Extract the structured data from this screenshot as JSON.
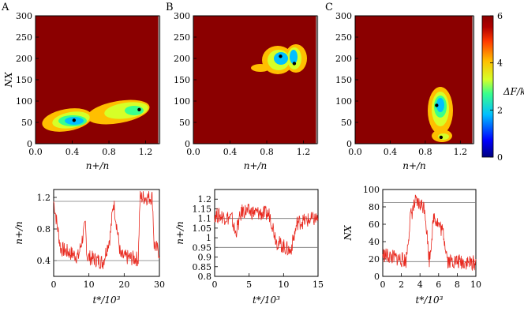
{
  "colors": {
    "background_red": "#8b0000",
    "series_red": "#e8281e",
    "hline": "#777777",
    "colormap": [
      "#00007f",
      "#0000ff",
      "#00bfff",
      "#39ff8c",
      "#d6ff28",
      "#ffbf00",
      "#ff3a00",
      "#b00000",
      "#8b0000"
    ]
  },
  "chart_data": [
    {
      "panel": "A",
      "type": "heatmap",
      "xlabel": "n+/n",
      "ylabel": "NX",
      "xlim": [
        0.0,
        1.35
      ],
      "ylim": [
        0,
        300
      ],
      "xticks": [
        "0.0",
        "0.4",
        "0.8",
        "1.2"
      ],
      "yticks": [
        "0",
        "50",
        "100",
        "150",
        "200",
        "250",
        "300"
      ],
      "minima": [
        {
          "x": 0.42,
          "y": 55
        },
        {
          "x": 1.13,
          "y": 80
        }
      ],
      "colorbar": false
    },
    {
      "panel": "B",
      "type": "heatmap",
      "xlabel": "n+/n",
      "ylabel": "",
      "xlim": [
        0.0,
        1.35
      ],
      "ylim": [
        0,
        300
      ],
      "xticks": [
        "0.0",
        "0.4",
        "0.8",
        "1.2"
      ],
      "yticks": [
        "0",
        "50",
        "100",
        "150",
        "200",
        "250",
        "300"
      ],
      "minima": [
        {
          "x": 0.95,
          "y": 205
        },
        {
          "x": 1.1,
          "y": 188
        }
      ],
      "colorbar": false
    },
    {
      "panel": "C",
      "type": "heatmap",
      "xlabel": "n+/n",
      "ylabel": "",
      "xlim": [
        0.0,
        1.35
      ],
      "ylim": [
        0,
        300
      ],
      "xticks": [
        "0.0",
        "0.4",
        "0.8",
        "1.2"
      ],
      "yticks": [
        "0",
        "50",
        "100",
        "150",
        "200",
        "250",
        "300"
      ],
      "minima": [
        {
          "x": 0.93,
          "y": 90
        },
        {
          "x": 0.98,
          "y": 15
        }
      ],
      "colorbar": true,
      "colorbar_label": "ΔF/kBT",
      "colorbar_range": [
        0,
        6
      ],
      "colorbar_ticks": [
        "0",
        "2",
        "4",
        "6"
      ]
    },
    {
      "panel": "A-trace",
      "type": "line",
      "xlabel": "t*/10³",
      "ylabel": "n+/n",
      "xlim": [
        0,
        30
      ],
      "ylim": [
        0.2,
        1.3
      ],
      "xticks": [
        "0",
        "10",
        "20",
        "30"
      ],
      "yticks": [
        "0.4",
        "0.8",
        "1.2"
      ],
      "hlines": [
        0.4,
        1.15
      ],
      "segments": [
        [
          0,
          1.15
        ],
        [
          2,
          0.55
        ],
        [
          7,
          0.45
        ],
        [
          9,
          0.85
        ],
        [
          9.5,
          0.45
        ],
        [
          14,
          0.38
        ],
        [
          16,
          0.7
        ],
        [
          17,
          1.15
        ],
        [
          19,
          0.45
        ],
        [
          24,
          0.42
        ],
        [
          24.5,
          1.2
        ],
        [
          28,
          1.2
        ],
        [
          28.5,
          0.6
        ],
        [
          30,
          0.5
        ]
      ]
    },
    {
      "panel": "B-trace",
      "type": "line",
      "xlabel": "t*/10³",
      "ylabel": "n+/n",
      "xlim": [
        0,
        15
      ],
      "ylim": [
        0.8,
        1.25
      ],
      "xticks": [
        "0",
        "5",
        "10",
        "15"
      ],
      "yticks": [
        "0.8",
        "0.85",
        "0.9",
        "0.95",
        "1",
        "1.05",
        "1.1",
        "1.15",
        "1.2"
      ],
      "hlines": [
        0.95,
        1.1
      ],
      "segments": [
        [
          0,
          1.12
        ],
        [
          2.5,
          1.1
        ],
        [
          3,
          1.02
        ],
        [
          4,
          1.14
        ],
        [
          8,
          1.12
        ],
        [
          9,
          0.98
        ],
        [
          11,
          0.93
        ],
        [
          12,
          1.08
        ],
        [
          15,
          1.1
        ]
      ]
    },
    {
      "panel": "C-trace",
      "type": "line",
      "xlabel": "t*/10³",
      "ylabel": "NX",
      "xlim": [
        0,
        10
      ],
      "ylim": [
        0,
        100
      ],
      "xticks": [
        "0",
        "2",
        "4",
        "6",
        "8",
        "10"
      ],
      "yticks": [
        "0",
        "20",
        "40",
        "60",
        "80",
        "100"
      ],
      "hlines": [
        17,
        85
      ],
      "segments": [
        [
          0,
          25
        ],
        [
          2.5,
          18
        ],
        [
          3,
          70
        ],
        [
          3.5,
          85
        ],
        [
          4.5,
          80
        ],
        [
          5,
          18
        ],
        [
          5.5,
          70
        ],
        [
          6.5,
          50
        ],
        [
          7,
          18
        ],
        [
          10,
          15
        ]
      ]
    }
  ]
}
